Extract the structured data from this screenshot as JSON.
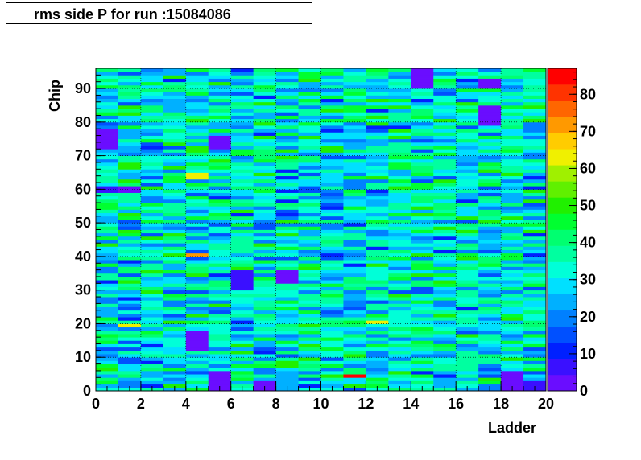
{
  "chart_data": {
    "type": "heatmap",
    "title": "rms side P for run :15084086",
    "xlabel": "Ladder",
    "ylabel": "Chip",
    "x_range": [
      0,
      20
    ],
    "y_range": [
      0,
      96
    ],
    "x_ticks": [
      "0",
      "2",
      "4",
      "6",
      "8",
      "10",
      "12",
      "14",
      "16",
      "18",
      "20"
    ],
    "y_ticks": [
      "0",
      "10",
      "20",
      "30",
      "40",
      "50",
      "60",
      "70",
      "80",
      "90"
    ],
    "z_range": [
      0,
      87
    ],
    "z_ticks": [
      "0",
      "10",
      "20",
      "30",
      "40",
      "50",
      "60",
      "70",
      "80"
    ],
    "grid": true,
    "palette": [
      "#6a0dff",
      "#3a10ff",
      "#0020ff",
      "#0050ff",
      "#0080ff",
      "#00b0ff",
      "#00e0ff",
      "#00ffd8",
      "#00ffa0",
      "#00ff70",
      "#00ff30",
      "#20f000",
      "#60f000",
      "#a0f000",
      "#f0f000",
      "#ffcc00",
      "#ff9900",
      "#ff6600",
      "#ff3300",
      "#ff0000"
    ],
    "n_ladders": 20,
    "n_chips": 96,
    "base_value": 32,
    "spread": 14,
    "hotspots": [
      {
        "ladder": 14,
        "chip_from": 90,
        "chip_to": 96,
        "value": 3
      },
      {
        "ladder": 17,
        "chip_from": 79,
        "chip_to": 85,
        "value": 3
      },
      {
        "ladder": 17,
        "chip_from": 90,
        "chip_to": 93,
        "value": 4
      },
      {
        "ladder": 0,
        "chip_from": 72,
        "chip_to": 78,
        "value": 3
      },
      {
        "ladder": 5,
        "chip_from": 72,
        "chip_to": 76,
        "value": 3
      },
      {
        "ladder": 4,
        "chip_from": 63,
        "chip_to": 65,
        "value": 65
      },
      {
        "ladder": 4,
        "chip_from": 40,
        "chip_to": 41,
        "value": 72
      },
      {
        "ladder": 6,
        "chip_from": 30,
        "chip_to": 36,
        "value": 7
      },
      {
        "ladder": 8,
        "chip_from": 32,
        "chip_to": 36,
        "value": 4
      },
      {
        "ladder": 4,
        "chip_from": 12,
        "chip_to": 18,
        "value": 3
      },
      {
        "ladder": 5,
        "chip_from": 0,
        "chip_to": 6,
        "value": 3
      },
      {
        "ladder": 7,
        "chip_from": 0,
        "chip_to": 3,
        "value": 4
      },
      {
        "ladder": 8,
        "chip_from": 0,
        "chip_to": 6,
        "value": 22
      },
      {
        "ladder": 11,
        "chip_from": 4,
        "chip_to": 5,
        "value": 86
      },
      {
        "ladder": 18,
        "chip_from": 0,
        "chip_to": 6,
        "value": 3
      },
      {
        "ladder": 19,
        "chip_from": 0,
        "chip_to": 3,
        "value": 8
      },
      {
        "ladder": 1,
        "chip_from": 19,
        "chip_to": 20,
        "value": 62
      },
      {
        "ladder": 12,
        "chip_from": 20,
        "chip_to": 21,
        "value": 62
      },
      {
        "ladder": 0,
        "chip_from": 59,
        "chip_to": 61,
        "value": 6
      },
      {
        "ladder": 1,
        "chip_from": 59,
        "chip_to": 61,
        "value": 4
      }
    ]
  }
}
